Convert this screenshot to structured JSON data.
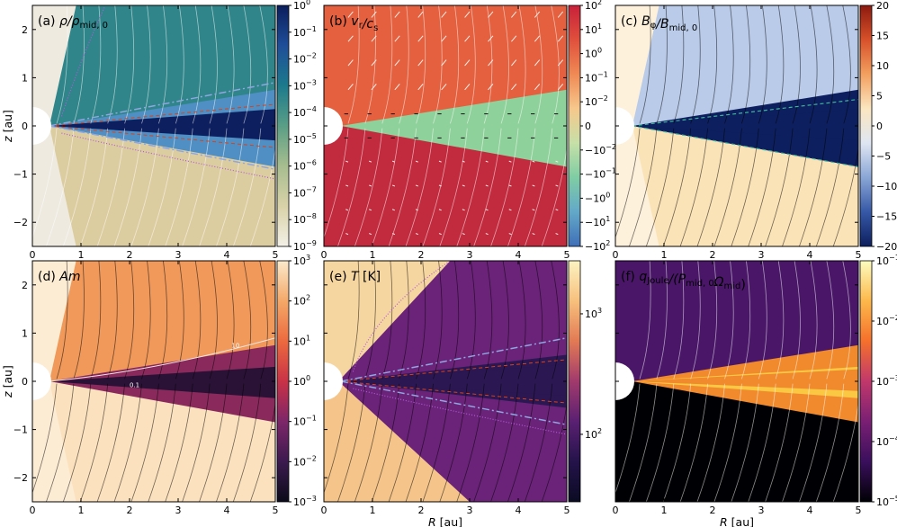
{
  "chart_data": [
    {
      "type": "heatmap",
      "title": "(a) ρ/ρ_mid,0",
      "title_parts": {
        "letter": "(a) ",
        "main": "ρ/ρ",
        "sub": "mid, 0"
      },
      "xlabel": "",
      "ylabel": "z [au]",
      "xlim": [
        0,
        5
      ],
      "ylim": [
        -2.5,
        2.5
      ],
      "xticks": [
        0,
        1,
        2,
        3,
        4,
        5
      ],
      "yticks": [
        2,
        1,
        0,
        -1,
        -2
      ],
      "colorbar": {
        "scale": "log",
        "range": [
          1e-09,
          1
        ],
        "ticks": [
          "10^0",
          "10^-1",
          "10^-2",
          "10^-3",
          "10^-4",
          "10^-5",
          "10^-6",
          "10^-7",
          "10^-8",
          "10^-9"
        ],
        "colors": [
          "#0b1e5c",
          "#1f4e99",
          "#1c7a8c",
          "#5a9e86",
          "#a7bd8f",
          "#d9d2a8",
          "#f3f0e6"
        ]
      },
      "fill_colors": {
        "upper": "#2f8589",
        "disk": "#0d1f5e",
        "edge": "#4f8fc4",
        "lower": "#dccda0",
        "far": "#eeeae0"
      },
      "contour_lines": {
        "red": "#d9421b",
        "white": "#e6ecf5",
        "magenta": "#b25bd8"
      }
    },
    {
      "type": "heatmap",
      "title": "(b) v_r/c_s",
      "title_parts": {
        "letter": "(b) ",
        "main_a": "v",
        "sub_a": "r",
        "main_b": "/c",
        "sub_b": "s"
      },
      "xlabel": "",
      "ylabel": "",
      "xlim": [
        0,
        5
      ],
      "ylim": [
        -2.5,
        2.5
      ],
      "xticks": [
        0,
        1,
        2,
        3,
        4,
        5
      ],
      "yticks": [
        2,
        1,
        0,
        -1,
        -2
      ],
      "colorbar": {
        "scale": "symlog",
        "range": [
          -100,
          100
        ],
        "ticks": [
          "10^2",
          "10^1",
          "10^0",
          "10^-1",
          "10^-2",
          "0",
          "-10^-2",
          "-10^-1",
          "-10^0",
          "-10^1",
          "-10^2"
        ],
        "colors": [
          "#c8203a",
          "#e0503c",
          "#f08a55",
          "#f6c88c",
          "#c6e0a8",
          "#7fcda4",
          "#63a8c8",
          "#3f6fb8"
        ]
      },
      "fill_colors": {
        "outflow": "#e4603f",
        "inflow": "#c22a3e",
        "midplane": "#8fd19b",
        "pale": "#f6c98d"
      }
    },
    {
      "type": "heatmap",
      "title": "(c) B_φ/B_mid,0",
      "title_parts": {
        "letter": "(c) ",
        "main_a": "B",
        "sub_a": "φ",
        "main_b": "/B",
        "sub_b": "mid, 0"
      },
      "xlabel": "",
      "ylabel": "",
      "xlim": [
        0,
        5
      ],
      "ylim": [
        -2.5,
        2.5
      ],
      "xticks": [
        0,
        1,
        2,
        3,
        4,
        5
      ],
      "yticks": [
        2,
        1,
        0,
        -1,
        -2
      ],
      "colorbar": {
        "scale": "linear",
        "range": [
          -20,
          20
        ],
        "ticks": [
          "20",
          "15",
          "10",
          "5",
          "0",
          "-5",
          "-10",
          "-15",
          "-20"
        ],
        "colors": [
          "#8c1a0f",
          "#d8512a",
          "#f2a060",
          "#fbe6c0",
          "#dfe6f2",
          "#8aa6d6",
          "#3658a6",
          "#0d1f5e"
        ]
      },
      "fill_colors": {
        "upper": "#b9cbe8",
        "disk": "#0d1f5e",
        "lower": "#fbe3b8",
        "far": "#fdf1dc"
      }
    },
    {
      "type": "heatmap",
      "title": "(d) Am",
      "title_parts": {
        "letter": "(d) ",
        "main": "Am"
      },
      "xlabel": "",
      "ylabel": "z [au]",
      "xlim": [
        0,
        5
      ],
      "ylim": [
        -2.5,
        2.5
      ],
      "xticks": [
        0,
        1,
        2,
        3,
        4,
        5
      ],
      "yticks": [
        2,
        1,
        0,
        -1,
        -2
      ],
      "contour_labels": [
        "10",
        "0.1"
      ],
      "colorbar": {
        "scale": "log",
        "range": [
          0.001,
          1000.0
        ],
        "ticks": [
          "10^3",
          "10^2",
          "10^1",
          "10^0",
          "10^-1",
          "10^-2",
          "10^-3"
        ],
        "colors": [
          "#fbeacb",
          "#f4a868",
          "#ec6a3f",
          "#c93246",
          "#7d2669",
          "#3c1a4f",
          "#0b0b19"
        ]
      },
      "fill_colors": {
        "upper": "#f0995a",
        "disk": "#8a2a5c",
        "core": "#2a1236",
        "lower": "#fbe1be",
        "far": "#fcecd4"
      }
    },
    {
      "type": "heatmap",
      "title": "(e) T [K]",
      "title_parts": {
        "letter": "(e) ",
        "main": "T",
        "unit": " [K]"
      },
      "xlabel": "R [au]",
      "ylabel": "",
      "xlim": [
        0,
        5
      ],
      "ylim": [
        -2.5,
        2.5
      ],
      "xticks": [
        0,
        1,
        2,
        3,
        4,
        5
      ],
      "yticks": [
        2,
        1,
        0,
        -1,
        -2
      ],
      "colorbar": {
        "scale": "log",
        "range": [
          30,
          3000
        ],
        "ticks": [
          "10^3",
          "10^2"
        ],
        "colors": [
          "#fcf3c2",
          "#f7c07d",
          "#e27a54",
          "#a13a6c",
          "#5a2072",
          "#24134a",
          "#0b0b23"
        ]
      },
      "fill_colors": {
        "atmosphere": "#f6d6a0",
        "wind": "#6a2378",
        "disk": "#2b1752",
        "lower": "#f4c48a"
      }
    },
    {
      "type": "heatmap",
      "title": "(f) q_Joule/(P_mid,0 Ω_mid)",
      "title_parts": {
        "letter": "(f) ",
        "main_a": "q",
        "sub_a": "Joule",
        "main_b": "/(P",
        "sub_b": "mid, 0",
        "main_c": "Ω",
        "sub_c": "mid",
        "main_d": ")"
      },
      "xlabel": "R [au]",
      "ylabel": "",
      "xlim": [
        0,
        5
      ],
      "ylim": [
        -2.5,
        2.5
      ],
      "xticks": [
        0,
        1,
        2,
        3,
        4,
        5
      ],
      "yticks": [
        2,
        1,
        0,
        -1,
        -2
      ],
      "colorbar": {
        "scale": "log",
        "range": [
          1e-05,
          0.1
        ],
        "ticks": [
          "10^-1",
          "10^-2",
          "10^-3",
          "10^-4",
          "10^-5"
        ],
        "colors": [
          "#fcfdbf",
          "#fcb84b",
          "#f5702c",
          "#c1386b",
          "#7a1f74",
          "#3a0f5c",
          "#000004"
        ]
      },
      "fill_colors": {
        "upper": "#4a1768",
        "disk": "#f08a2c",
        "core": "#fbc844",
        "lower": "#000004"
      }
    }
  ]
}
